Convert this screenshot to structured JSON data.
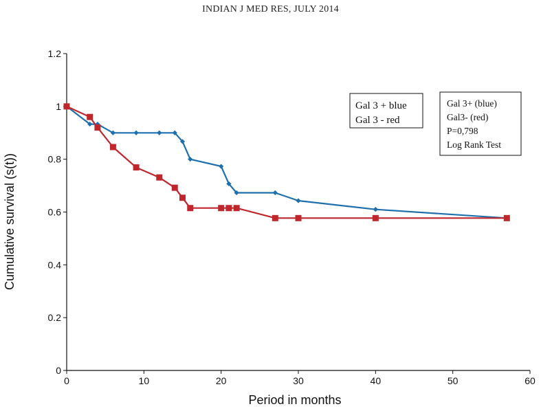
{
  "header": "INDIAN J MED RES, JULY 2014",
  "chart_data": {
    "type": "line",
    "xlabel": "Period in months",
    "ylabel": "Cumulative survival (s(t))",
    "xlim": [
      0,
      60
    ],
    "ylim": [
      0,
      1.2
    ],
    "xticks": [
      0,
      10,
      20,
      30,
      40,
      50,
      60
    ],
    "yticks": [
      0,
      0.2,
      0.4,
      0.6,
      0.8,
      1,
      1.2
    ],
    "ytick_labels": [
      "0",
      "0.2",
      "0.4",
      "0.6",
      "0.8",
      "1",
      "1.2"
    ],
    "grid": false,
    "series": [
      {
        "name": "Gal 3 + blue",
        "color": "#1f6fad",
        "marker": "diamond",
        "x": [
          0,
          3,
          4,
          6,
          9,
          12,
          14,
          15,
          16,
          20,
          21,
          22,
          27,
          30,
          40,
          57
        ],
        "y": [
          1.0,
          0.933,
          0.933,
          0.9,
          0.9,
          0.9,
          0.9,
          0.867,
          0.8,
          0.773,
          0.707,
          0.673,
          0.673,
          0.643,
          0.61,
          0.577
        ]
      },
      {
        "name": "Gal 3 - red",
        "color": "#c0272d",
        "marker": "square",
        "x": [
          0,
          3,
          4,
          6,
          9,
          12,
          14,
          15,
          16,
          20,
          21,
          22,
          27,
          30,
          40,
          57
        ],
        "y": [
          1.0,
          0.96,
          0.92,
          0.846,
          0.769,
          0.731,
          0.692,
          0.654,
          0.615,
          0.615,
          0.615,
          0.615,
          0.577,
          0.577,
          0.577,
          0.577
        ]
      }
    ],
    "legend": {
      "position": "top-right",
      "lines": [
        "Gal 3 + blue",
        "Gal 3 - red"
      ]
    },
    "annotation": {
      "position": "top-right",
      "lines": [
        "Gal 3+ (blue)",
        "Gal3- (red)",
        "P=0,798",
        "Log Rank Test"
      ]
    }
  }
}
